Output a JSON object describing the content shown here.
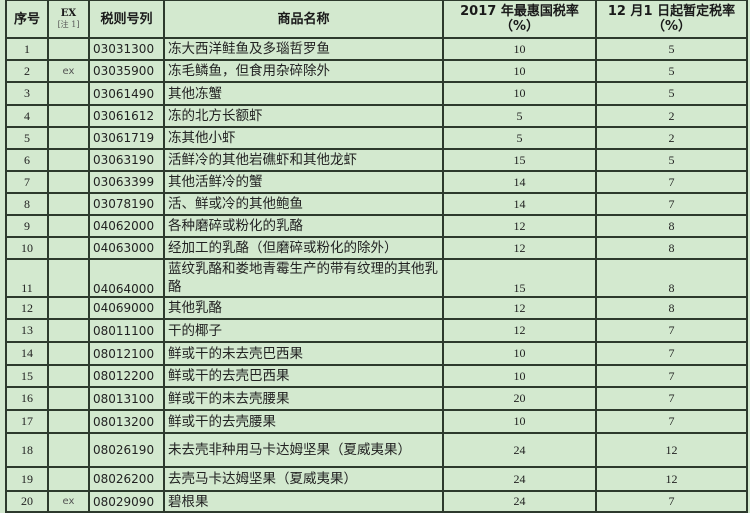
{
  "headers": {
    "seq": "序号",
    "ex": "EX",
    "ex_note": "[注 1]",
    "code": "税则号列",
    "name": "商品名称",
    "mfn": "2017 年最惠国税率（%）",
    "temp": "12 月1 日起暂定税率（%）"
  },
  "rows": [
    {
      "seq": "1",
      "ex": "",
      "code": "03031300",
      "name": "冻大西洋鲑鱼及多瑙哲罗鱼",
      "mfn": "10",
      "temp": "5"
    },
    {
      "seq": "2",
      "ex": "ex",
      "code": "03035900",
      "name": "冻毛鳞鱼，但食用杂碎除外",
      "mfn": "10",
      "temp": "5"
    },
    {
      "seq": "3",
      "ex": "",
      "code": "03061490",
      "name": "其他冻蟹",
      "mfn": "10",
      "temp": "5"
    },
    {
      "seq": "4",
      "ex": "",
      "code": "03061612",
      "name": "冻的北方长额虾",
      "mfn": "5",
      "temp": "2"
    },
    {
      "seq": "5",
      "ex": "",
      "code": "03061719",
      "name": "冻其他小虾",
      "mfn": "5",
      "temp": "2"
    },
    {
      "seq": "6",
      "ex": "",
      "code": "03063190",
      "name": "活鲜冷的其他岩礁虾和其他龙虾",
      "mfn": "15",
      "temp": "5"
    },
    {
      "seq": "7",
      "ex": "",
      "code": "03063399",
      "name": "其他活鲜冷的蟹",
      "mfn": "14",
      "temp": "7"
    },
    {
      "seq": "8",
      "ex": "",
      "code": "03078190",
      "name": "活、鲜或冷的其他鲍鱼",
      "mfn": "14",
      "temp": "7"
    },
    {
      "seq": "9",
      "ex": "",
      "code": "04062000",
      "name": "各种磨碎或粉化的乳酪",
      "mfn": "12",
      "temp": "8"
    },
    {
      "seq": "10",
      "ex": "",
      "code": "04063000",
      "name": "经加工的乳酪（但磨碎或粉化的除外）",
      "mfn": "12",
      "temp": "8"
    },
    {
      "seq": "11",
      "ex": "",
      "code": "04064000",
      "name": "蓝纹乳酪和娄地青霉生产的带有纹理的其他乳酪",
      "mfn": "15",
      "temp": "8"
    },
    {
      "seq": "12",
      "ex": "",
      "code": "04069000",
      "name": "其他乳酪",
      "mfn": "12",
      "temp": "8"
    },
    {
      "seq": "13",
      "ex": "",
      "code": "08011100",
      "name": "干的椰子",
      "mfn": "12",
      "temp": "7"
    },
    {
      "seq": "14",
      "ex": "",
      "code": "08012100",
      "name": "鲜或干的未去壳巴西果",
      "mfn": "10",
      "temp": "7"
    },
    {
      "seq": "15",
      "ex": "",
      "code": "08012200",
      "name": "鲜或干的去壳巴西果",
      "mfn": "10",
      "temp": "7"
    },
    {
      "seq": "16",
      "ex": "",
      "code": "08013100",
      "name": "鲜或干的未去壳腰果",
      "mfn": "20",
      "temp": "7"
    },
    {
      "seq": "17",
      "ex": "",
      "code": "08013200",
      "name": "鲜或干的去壳腰果",
      "mfn": "10",
      "temp": "7"
    },
    {
      "seq": "18",
      "ex": "",
      "code": "08026190",
      "name": "未去壳非种用马卡达姆坚果（夏威夷果）",
      "mfn": "24",
      "temp": "12"
    },
    {
      "seq": "19",
      "ex": "",
      "code": "08026200",
      "name": "去壳马卡达姆坚果（夏威夷果）",
      "mfn": "24",
      "temp": "12"
    },
    {
      "seq": "20",
      "ex": "ex",
      "code": "08029090",
      "name": "碧根果",
      "mfn": "24",
      "temp": "7"
    }
  ]
}
